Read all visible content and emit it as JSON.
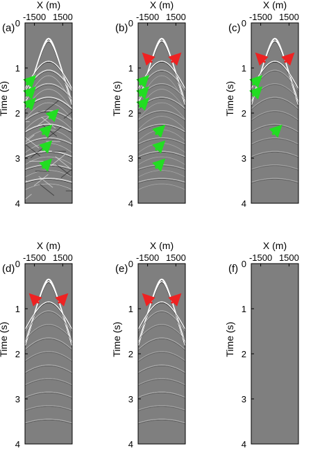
{
  "figure": {
    "x_axis_title": "X (m)",
    "y_axis_title": "Time (s)",
    "x_tick_labels": [
      "-1500",
      "1500"
    ],
    "y_tick_labels": [
      "0",
      "1",
      "2",
      "3",
      "4"
    ],
    "panels": [
      {
        "letter": "(a)",
        "arrows": {
          "green": 7,
          "red": 0
        }
      },
      {
        "letter": "(b)",
        "arrows": {
          "green": 6,
          "red": 2
        }
      },
      {
        "letter": "(c)",
        "arrows": {
          "green": 3,
          "red": 2
        }
      },
      {
        "letter": "(d)",
        "arrows": {
          "green": 0,
          "red": 2
        }
      },
      {
        "letter": "(e)",
        "arrows": {
          "green": 0,
          "red": 2
        }
      },
      {
        "letter": "(f)",
        "arrows": {
          "green": 0,
          "red": 0
        }
      }
    ]
  },
  "colors": {
    "background_gray": "#7f7f7f",
    "green_arrow": "#22dd22",
    "red_arrow": "#ee2222"
  },
  "chart_data": {
    "type": "heatmap",
    "x_range_m": [
      -2500,
      2500
    ],
    "x_ticks_m": [
      -1500,
      1500
    ],
    "y_range_s": [
      0,
      4
    ],
    "y_ticks_s": [
      0,
      1,
      2,
      3,
      4
    ],
    "y_reversed": true,
    "colormap": "gray"
  }
}
